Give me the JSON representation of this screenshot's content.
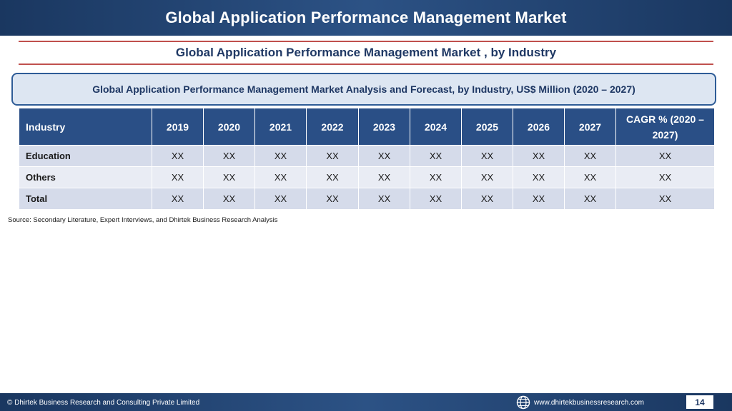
{
  "header": {
    "title": "Global Application Performance Management Market"
  },
  "subtitle": "Global Application Performance Management Market , by Industry",
  "banner": "Global Application Performance Management Market  Analysis and Forecast, by Industry, US$ Million (2020 – 2027)",
  "table": {
    "columns": [
      "Industry",
      "2019",
      "2020",
      "2021",
      "2022",
      "2023",
      "2024",
      "2025",
      "2026",
      "2027",
      "CAGR % (2020 – 2027)"
    ],
    "rows": [
      [
        "Education",
        "XX",
        "XX",
        "XX",
        "XX",
        "XX",
        "XX",
        "XX",
        "XX",
        "XX",
        "XX"
      ],
      [
        "Others",
        "XX",
        "XX",
        "XX",
        "XX",
        "XX",
        "XX",
        "XX",
        "XX",
        "XX",
        "XX"
      ],
      [
        "Total",
        "XX",
        "XX",
        "XX",
        "XX",
        "XX",
        "XX",
        "XX",
        "XX",
        "XX",
        "XX"
      ]
    ]
  },
  "source": "Source: Secondary Literature, Expert Interviews, and Dhirtek Business Research Analysis",
  "footer": {
    "copyright": "© Dhirtek Business Research and Consulting Private Limited",
    "website": "www.dhirtekbusinessresearch.com",
    "page_number": "14",
    "globe_icon": "globe-icon"
  },
  "colors": {
    "header_bg": "#1f3f6e",
    "table_header_bg": "#2a4f86",
    "row_odd": "#d5dbea",
    "row_even": "#e9ecf4",
    "accent_line": "#c0504d",
    "banner_border": "#2e5c97"
  }
}
